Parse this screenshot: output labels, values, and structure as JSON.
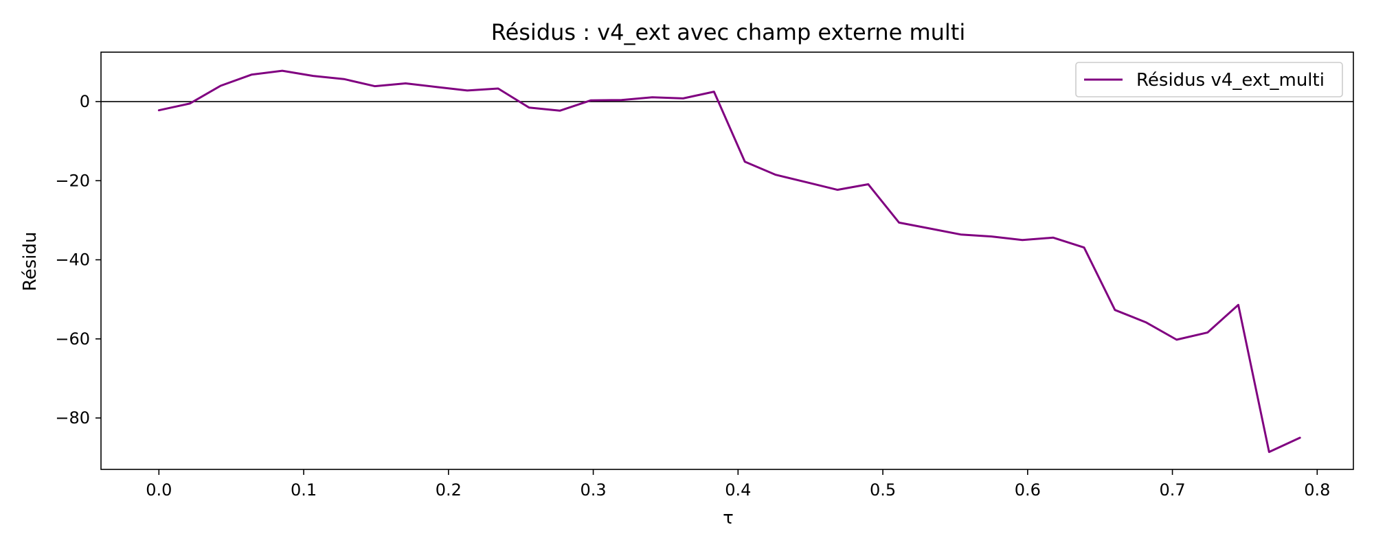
{
  "chart_data": {
    "type": "line",
    "title": "Résidus : v4_ext avec champ externe multi",
    "xlabel": "τ",
    "ylabel": "Résidu",
    "xlim": [
      -0.04,
      0.825
    ],
    "ylim": [
      -93,
      12.5
    ],
    "xticks": [
      0.0,
      0.1,
      0.2,
      0.3,
      0.4,
      0.5,
      0.6,
      0.7,
      0.8
    ],
    "xtick_labels": [
      "0.0",
      "0.1",
      "0.2",
      "0.3",
      "0.4",
      "0.5",
      "0.6",
      "0.7",
      "0.8"
    ],
    "yticks": [
      0,
      -20,
      -40,
      -60,
      -80
    ],
    "ytick_labels": [
      "0",
      "−20",
      "−40",
      "−60",
      "−80"
    ],
    "grid": false,
    "zero_line": true,
    "legend_position": "top-right",
    "series": [
      {
        "name": "Résidus v4_ext_multi",
        "color": "#800080",
        "x": [
          0.0,
          0.0213,
          0.0426,
          0.0639,
          0.0852,
          0.1065,
          0.1278,
          0.1491,
          0.1704,
          0.1917,
          0.213,
          0.2343,
          0.2556,
          0.2769,
          0.2982,
          0.3195,
          0.3408,
          0.3621,
          0.3834,
          0.4047,
          0.426,
          0.4473,
          0.4686,
          0.4899,
          0.5112,
          0.5325,
          0.5538,
          0.5751,
          0.5964,
          0.6177,
          0.639,
          0.6603,
          0.6816,
          0.7029,
          0.7242,
          0.7455,
          0.7668,
          0.7881
        ],
        "y": [
          -2.2,
          -0.5,
          4.0,
          6.8,
          7.8,
          6.5,
          5.7,
          3.9,
          4.6,
          3.7,
          2.8,
          3.3,
          -1.5,
          -2.3,
          0.3,
          0.4,
          1.1,
          0.8,
          2.5,
          -15.2,
          -18.5,
          -20.4,
          -22.3,
          -20.9,
          -30.6,
          -32.1,
          -33.6,
          -34.1,
          -35.0,
          -34.4,
          -36.9,
          -52.7,
          -55.8,
          -60.2,
          -58.4,
          -51.4,
          -88.6,
          -85.0
        ]
      }
    ]
  }
}
